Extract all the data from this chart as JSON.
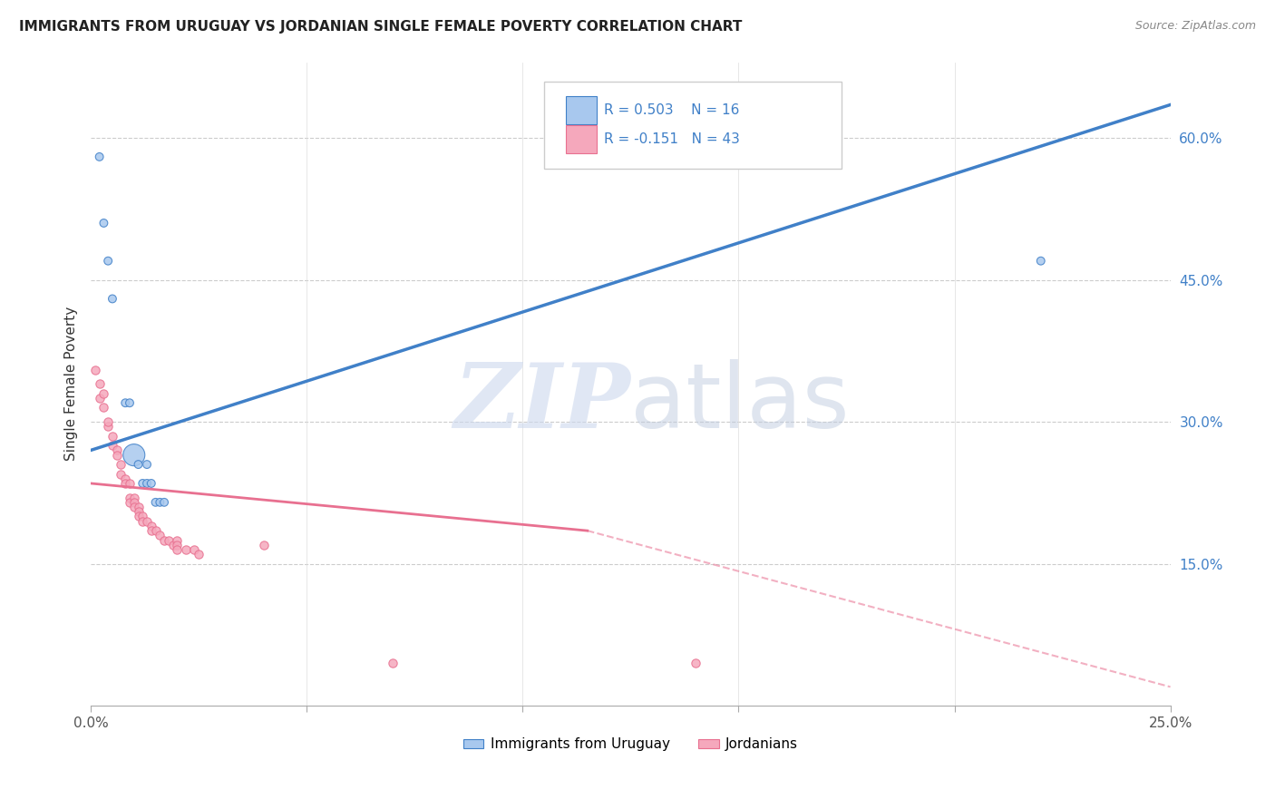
{
  "title": "IMMIGRANTS FROM URUGUAY VS JORDANIAN SINGLE FEMALE POVERTY CORRELATION CHART",
  "source": "Source: ZipAtlas.com",
  "ylabel": "Single Female Poverty",
  "right_y_ticks": [
    0.15,
    0.3,
    0.45,
    0.6
  ],
  "right_y_tick_labels": [
    "15.0%",
    "30.0%",
    "45.0%",
    "60.0%"
  ],
  "xlim": [
    0.0,
    0.25
  ],
  "ylim": [
    0.0,
    0.68
  ],
  "legend_R_blue": "R = 0.503",
  "legend_N_blue": "N = 16",
  "legend_R_pink": "R = -0.151",
  "legend_N_pink": "N = 43",
  "legend_label_blue": "Immigrants from Uruguay",
  "legend_label_pink": "Jordanians",
  "color_blue": "#a8c8ee",
  "color_pink": "#f5a8bc",
  "color_blue_line": "#4080c8",
  "color_pink_line": "#e87090",
  "watermark_zip": "ZIP",
  "watermark_atlas": "atlas",
  "blue_scatter": [
    [
      0.002,
      0.58
    ],
    [
      0.003,
      0.51
    ],
    [
      0.004,
      0.47
    ],
    [
      0.005,
      0.43
    ],
    [
      0.008,
      0.32
    ],
    [
      0.009,
      0.32
    ],
    [
      0.01,
      0.265
    ],
    [
      0.011,
      0.255
    ],
    [
      0.012,
      0.235
    ],
    [
      0.013,
      0.235
    ],
    [
      0.013,
      0.255
    ],
    [
      0.014,
      0.235
    ],
    [
      0.015,
      0.215
    ],
    [
      0.016,
      0.215
    ],
    [
      0.017,
      0.215
    ],
    [
      0.22,
      0.47
    ]
  ],
  "blue_scatter_sizes": [
    40,
    40,
    40,
    40,
    40,
    40,
    300,
    40,
    40,
    40,
    40,
    40,
    40,
    40,
    40,
    40
  ],
  "pink_scatter": [
    [
      0.001,
      0.355
    ],
    [
      0.002,
      0.34
    ],
    [
      0.002,
      0.325
    ],
    [
      0.003,
      0.33
    ],
    [
      0.003,
      0.315
    ],
    [
      0.004,
      0.295
    ],
    [
      0.004,
      0.3
    ],
    [
      0.005,
      0.285
    ],
    [
      0.005,
      0.275
    ],
    [
      0.006,
      0.27
    ],
    [
      0.006,
      0.265
    ],
    [
      0.007,
      0.255
    ],
    [
      0.007,
      0.245
    ],
    [
      0.008,
      0.24
    ],
    [
      0.008,
      0.235
    ],
    [
      0.009,
      0.235
    ],
    [
      0.009,
      0.22
    ],
    [
      0.009,
      0.215
    ],
    [
      0.01,
      0.22
    ],
    [
      0.01,
      0.215
    ],
    [
      0.01,
      0.21
    ],
    [
      0.011,
      0.21
    ],
    [
      0.011,
      0.205
    ],
    [
      0.011,
      0.2
    ],
    [
      0.012,
      0.2
    ],
    [
      0.012,
      0.195
    ],
    [
      0.013,
      0.195
    ],
    [
      0.014,
      0.19
    ],
    [
      0.014,
      0.185
    ],
    [
      0.015,
      0.185
    ],
    [
      0.016,
      0.18
    ],
    [
      0.017,
      0.175
    ],
    [
      0.018,
      0.175
    ],
    [
      0.019,
      0.17
    ],
    [
      0.02,
      0.175
    ],
    [
      0.02,
      0.17
    ],
    [
      0.022,
      0.165
    ],
    [
      0.024,
      0.165
    ],
    [
      0.025,
      0.16
    ],
    [
      0.04,
      0.17
    ],
    [
      0.02,
      0.165
    ],
    [
      0.07,
      0.045
    ],
    [
      0.14,
      0.045
    ]
  ],
  "blue_line": [
    [
      0.0,
      0.27
    ],
    [
      0.25,
      0.635
    ]
  ],
  "pink_line_solid": [
    [
      0.0,
      0.235
    ],
    [
      0.115,
      0.185
    ]
  ],
  "pink_line_dashed": [
    [
      0.115,
      0.185
    ],
    [
      0.25,
      0.02
    ]
  ]
}
